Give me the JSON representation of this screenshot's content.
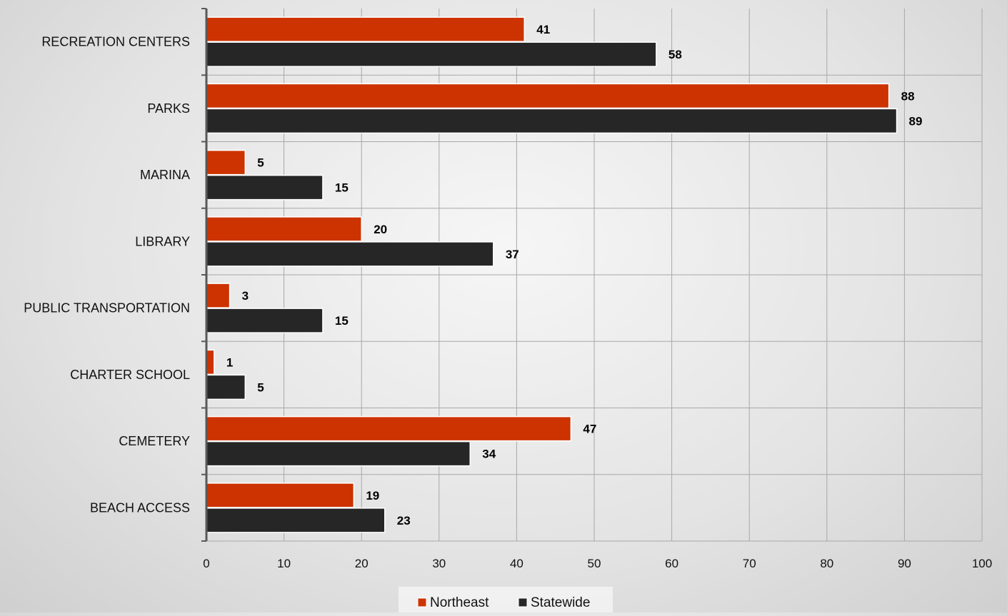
{
  "chart_data": {
    "type": "bar",
    "orientation": "horizontal",
    "title": "",
    "xlabel": "",
    "ylabel": "",
    "categories": [
      "RECREATION CENTERS",
      "PARKS",
      "MARINA",
      "LIBRARY",
      "PUBLIC TRANSPORTATION",
      "CHARTER SCHOOL",
      "CEMETERY",
      "BEACH ACCESS"
    ],
    "series": [
      {
        "name": "Northeast",
        "color": "#cc3300",
        "values": [
          41,
          88,
          5,
          20,
          3,
          1,
          47,
          19
        ]
      },
      {
        "name": "Statewide",
        "color": "#262626",
        "values": [
          58,
          89,
          15,
          37,
          15,
          5,
          34,
          23
        ]
      }
    ],
    "xlim": [
      0,
      100
    ],
    "x_ticks": [
      "0",
      "10",
      "20",
      "30",
      "40",
      "50",
      "60",
      "70",
      "80",
      "90",
      "100"
    ],
    "grid": true,
    "data_labels": true,
    "legend_position": "bottom"
  }
}
